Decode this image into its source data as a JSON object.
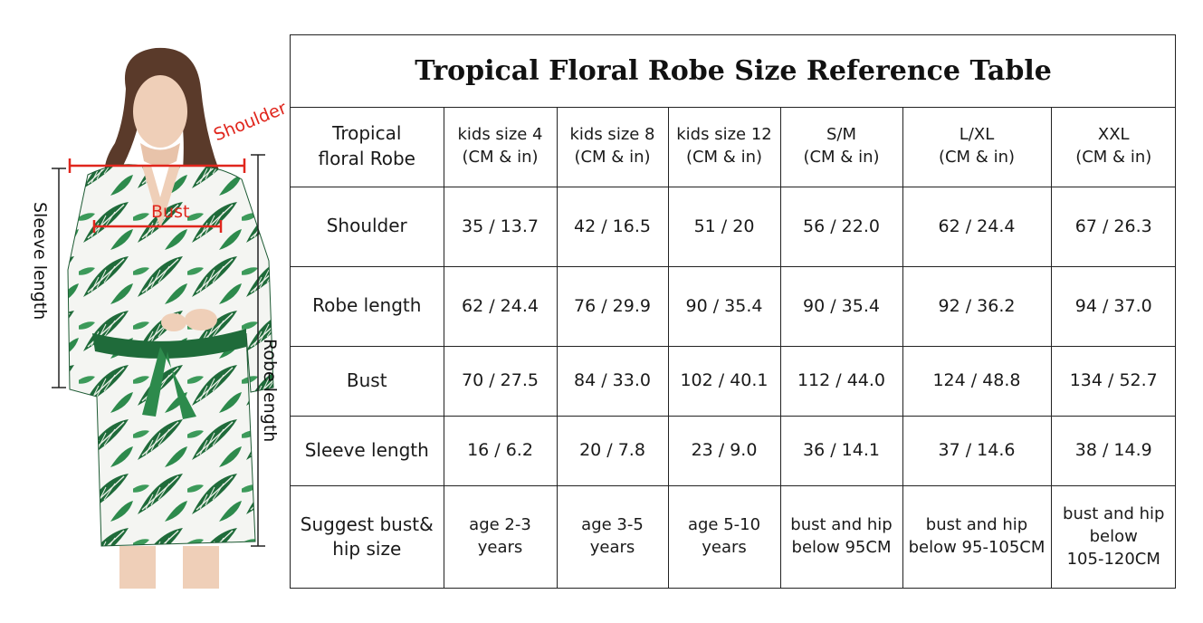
{
  "title": "Tropical Floral Robe Size Reference Table",
  "illustration": {
    "labels": {
      "shoulder": "Shoulder",
      "bust": "Bust",
      "sleeve_length": "Sleeve length",
      "robe_length": "Robe length"
    },
    "accent_color": "#e0261d"
  },
  "table": {
    "corner": "Tropical floral Robe",
    "columns": [
      {
        "name": "kids size 4",
        "unit": "(CM & in)"
      },
      {
        "name": "kids size 8",
        "unit": "(CM & in)"
      },
      {
        "name": "kids size 12",
        "unit": "(CM & in)"
      },
      {
        "name": "S/M",
        "unit": "(CM & in)"
      },
      {
        "name": "L/XL",
        "unit": "(CM & in)"
      },
      {
        "name": "XXL",
        "unit": "(CM & in)"
      }
    ],
    "rows": [
      {
        "label": "Shoulder",
        "values": [
          "35 / 13.7",
          "42 / 16.5",
          "51 / 20",
          "56 / 22.0",
          "62 / 24.4",
          "67 / 26.3"
        ]
      },
      {
        "label": "Robe length",
        "values": [
          "62 / 24.4",
          "76 / 29.9",
          "90 / 35.4",
          "90 / 35.4",
          "92 / 36.2",
          "94 / 37.0"
        ]
      },
      {
        "label": "Bust",
        "values": [
          "70 / 27.5",
          "84 / 33.0",
          "102 / 40.1",
          "112 / 44.0",
          "124 / 48.8",
          "134 / 52.7"
        ]
      },
      {
        "label": "Sleeve length",
        "values": [
          "16 / 6.2",
          "20 / 7.8",
          "23 / 9.0",
          "36 / 14.1",
          "37 / 14.6",
          "38 / 14.9"
        ]
      }
    ],
    "suggest": {
      "label_line1": "Suggest bust&",
      "label_line2": "hip size",
      "values": [
        [
          "age 2-3",
          "years"
        ],
        [
          "age 3-5",
          "years"
        ],
        [
          "age 5-10",
          "years"
        ],
        [
          "bust and hip",
          "below 95CM"
        ],
        [
          "bust and hip",
          "below 95-105CM"
        ],
        [
          "bust and hip",
          "below",
          "105-120CM"
        ]
      ]
    }
  }
}
